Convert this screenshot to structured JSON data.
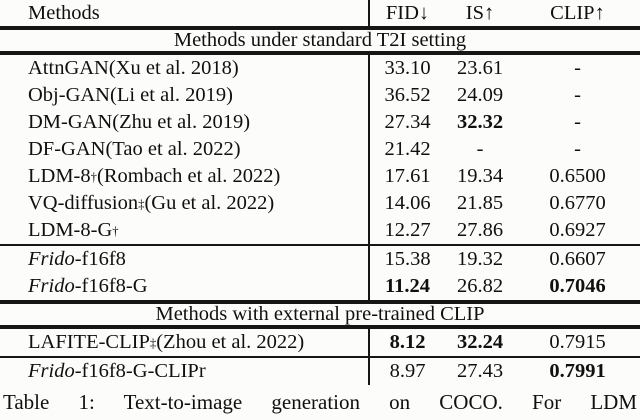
{
  "table": {
    "header": {
      "methods": "Methods",
      "fid": "FID↓",
      "is": "IS↑",
      "clip": "CLIP↑"
    },
    "section1": "Methods under standard T2I setting",
    "section2": "Methods with external pre-trained CLIP",
    "rows": [
      {
        "method": {
          "italic": "",
          "name": "AttnGAN",
          "sup": "",
          "cite": " (Xu et al. 2018)"
        },
        "fid": {
          "v": "33.10",
          "b": false
        },
        "is": {
          "v": "23.61",
          "b": false
        },
        "clip": {
          "v": "-",
          "b": false
        }
      },
      {
        "method": {
          "italic": "",
          "name": "Obj-GAN",
          "sup": "",
          "cite": " (Li et al. 2019)"
        },
        "fid": {
          "v": "36.52",
          "b": false
        },
        "is": {
          "v": "24.09",
          "b": false
        },
        "clip": {
          "v": "-",
          "b": false
        }
      },
      {
        "method": {
          "italic": "",
          "name": "DM-GAN",
          "sup": "",
          "cite": " (Zhu et al. 2019)"
        },
        "fid": {
          "v": "27.34",
          "b": false
        },
        "is": {
          "v": "32.32",
          "b": true
        },
        "clip": {
          "v": "-",
          "b": false
        }
      },
      {
        "method": {
          "italic": "",
          "name": "DF-GAN",
          "sup": "",
          "cite": " (Tao et al. 2022)"
        },
        "fid": {
          "v": "21.42",
          "b": false
        },
        "is": {
          "v": "-",
          "b": false
        },
        "clip": {
          "v": "-",
          "b": false
        }
      },
      {
        "method": {
          "italic": "",
          "name": "LDM-8",
          "sup": "†",
          "cite": " (Rombach et al. 2022)"
        },
        "fid": {
          "v": "17.61",
          "b": false
        },
        "is": {
          "v": "19.34",
          "b": false
        },
        "clip": {
          "v": "0.6500",
          "b": false
        }
      },
      {
        "method": {
          "italic": "",
          "name": "VQ-diffusion",
          "sup": "‡",
          "cite": " (Gu et al. 2022)"
        },
        "fid": {
          "v": "14.06",
          "b": false
        },
        "is": {
          "v": "21.85",
          "b": false
        },
        "clip": {
          "v": "0.6770",
          "b": false
        }
      },
      {
        "method": {
          "italic": "",
          "name": "LDM-8-G",
          "sup": "†",
          "cite": ""
        },
        "fid": {
          "v": "12.27",
          "b": false
        },
        "is": {
          "v": "27.86",
          "b": false
        },
        "clip": {
          "v": "0.6927",
          "b": false
        }
      },
      {
        "method": {
          "italic": "Frido",
          "name": "-f16f8",
          "sup": "",
          "cite": ""
        },
        "fid": {
          "v": "15.38",
          "b": false
        },
        "is": {
          "v": "19.32",
          "b": false
        },
        "clip": {
          "v": "0.6607",
          "b": false
        }
      },
      {
        "method": {
          "italic": "Frido",
          "name": "-f16f8-G",
          "sup": "",
          "cite": ""
        },
        "fid": {
          "v": "11.24",
          "b": true
        },
        "is": {
          "v": "26.82",
          "b": false
        },
        "clip": {
          "v": "0.7046",
          "b": true
        }
      },
      {
        "method": {
          "italic": "",
          "name": "LAFITE-CLIP",
          "sup": "‡",
          "cite": " (Zhou et al. 2022)"
        },
        "fid": {
          "v": "8.12",
          "b": true
        },
        "is": {
          "v": "32.24",
          "b": true
        },
        "clip": {
          "v": "0.7915",
          "b": false
        }
      },
      {
        "method": {
          "italic": "Frido",
          "name": "-f16f8-G-CLIPr",
          "sup": "",
          "cite": ""
        },
        "fid": {
          "v": "8.97",
          "b": false
        },
        "is": {
          "v": "27.43",
          "b": false
        },
        "clip": {
          "v": "0.7991",
          "b": true
        }
      }
    ]
  },
  "caption": "Table 1: Text-to-image generation on COCO. For LDM"
}
